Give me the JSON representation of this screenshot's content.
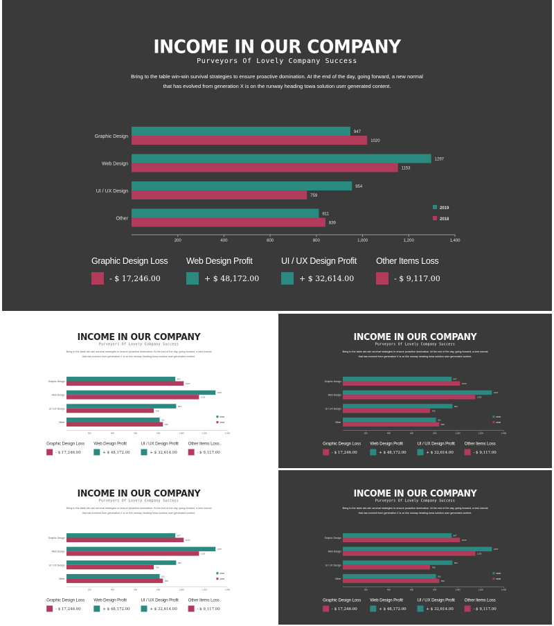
{
  "title": "INCOME IN OUR COMPANY",
  "subtitle": "Purveyors Of Lovely Company Success",
  "description_line1": "Bring to the table win-win survival strategies to ensure proactive domination. At the end of the day, going forward, a new normal",
  "description_line2": "that has evolved from generation X is on the runway heading towa solution user generated content.",
  "colors": {
    "series_2019": "#2b8a80",
    "series_2018": "#b23a5a",
    "dark_bg": "#3a3a3a",
    "light_bg": "#ffffff"
  },
  "chart_data": {
    "type": "bar",
    "orientation": "horizontal",
    "categories": [
      "Graphic Design",
      "Web Design",
      "UI / UX Design",
      "Other"
    ],
    "series": [
      {
        "name": "2019",
        "values": [
          947,
          1297,
          954,
          811
        ]
      },
      {
        "name": "2018",
        "values": [
          1020,
          1153,
          759,
          839
        ]
      }
    ],
    "xticks": [
      "200",
      "400",
      "600",
      "800",
      "1,000",
      "1,200",
      "1,400"
    ],
    "xlim": [
      0,
      1400
    ],
    "legend_position": "right"
  },
  "value_labels": {
    "2019": [
      "947",
      "1297",
      "954",
      "811"
    ],
    "2018": [
      "1020",
      "1153",
      "759",
      "839"
    ]
  },
  "summary": [
    {
      "title": "Graphic Design Loss",
      "value": "- $ 17,246.00",
      "color": "#b23a5a"
    },
    {
      "title": "Web Design Profit",
      "value": "+ $ 48,172.00",
      "color": "#2b8a80"
    },
    {
      "title": "UI / UX Design Profit",
      "value": "+ $ 32,614.00",
      "color": "#2b8a80"
    },
    {
      "title": "Other Items Loss",
      "value": "- $ 9,117.00",
      "color": "#b23a5a"
    }
  ],
  "thumbnails": [
    {
      "theme": "light"
    },
    {
      "theme": "dark"
    },
    {
      "theme": "light"
    },
    {
      "theme": "dark"
    }
  ]
}
